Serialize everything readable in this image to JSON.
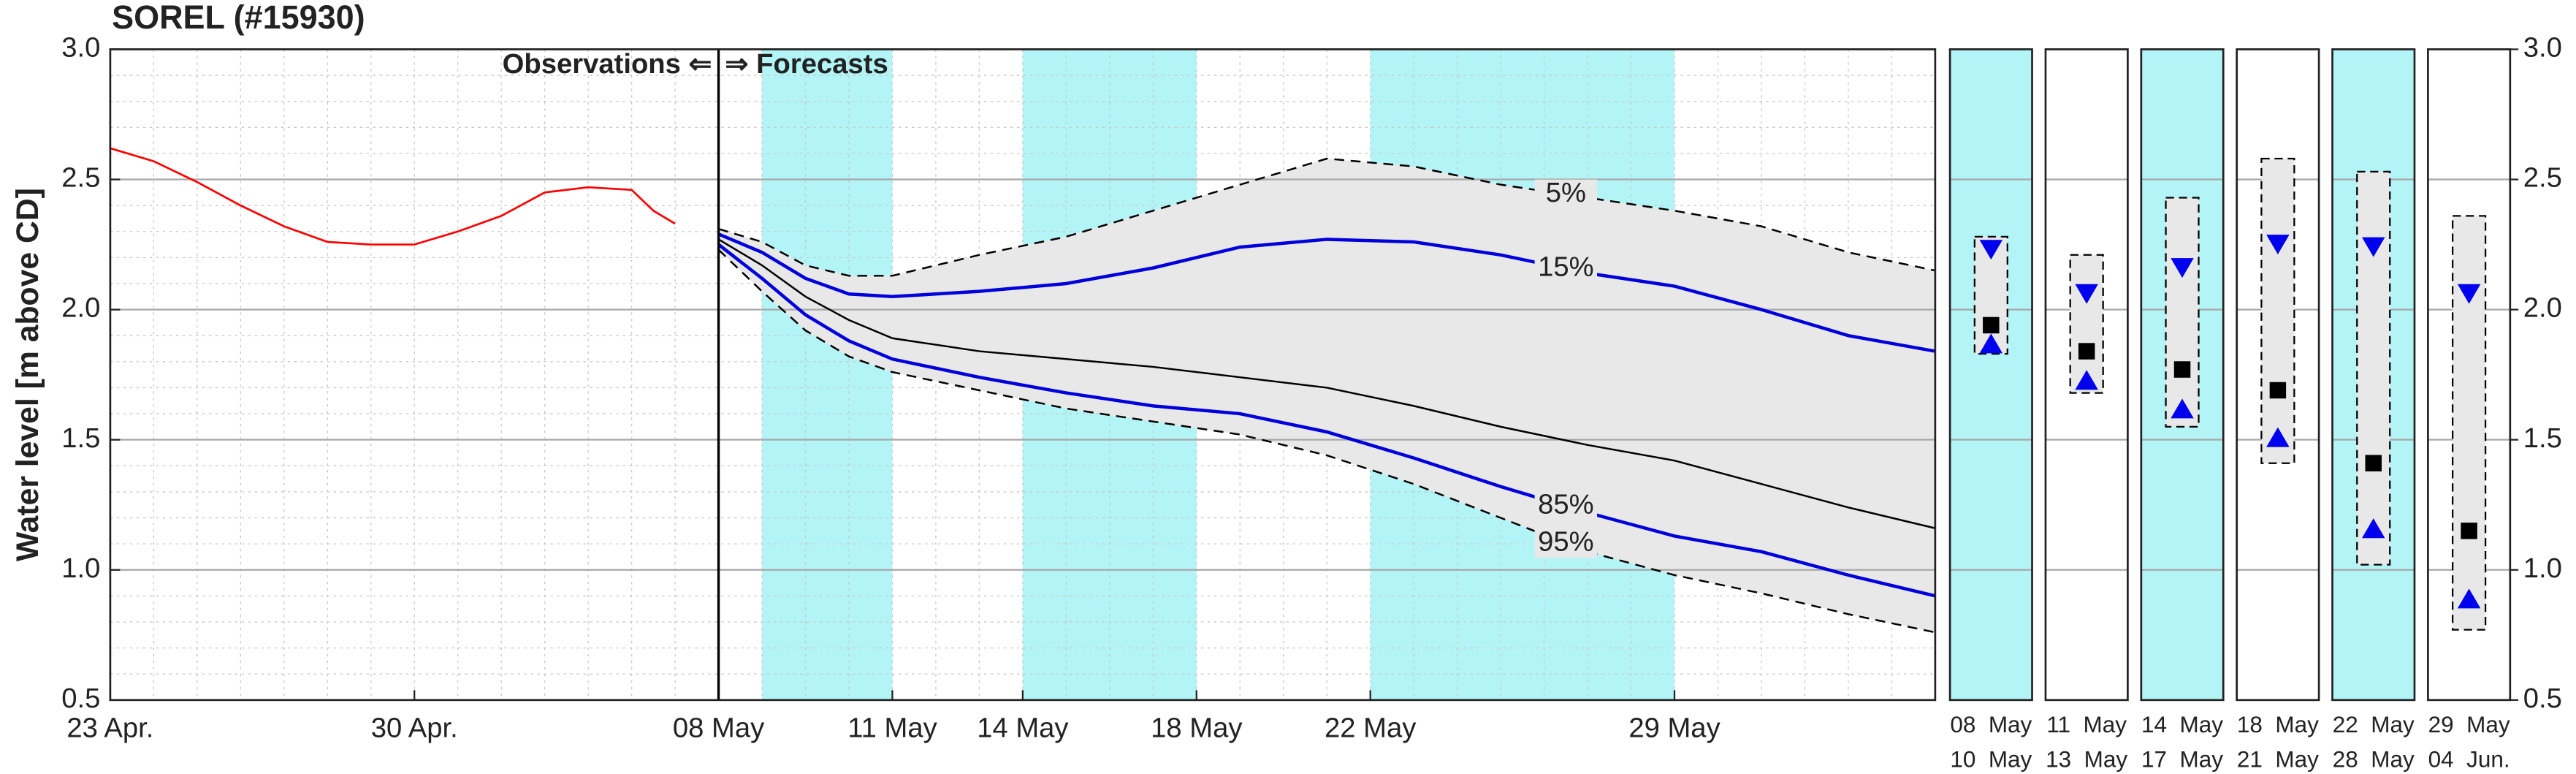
{
  "chart_data": {
    "type": "line",
    "title": "SOREL (#15930)",
    "y_label": "Water level [m above CD]",
    "annotations": [
      "Observations ⇐",
      "⇒ Forecasts"
    ],
    "forecast_start": 14,
    "shaded": [
      [
        15,
        18
      ],
      [
        21,
        25
      ],
      [
        29,
        36
      ]
    ],
    "xlim": [
      0,
      42
    ],
    "xticks": [
      {
        "value": 0,
        "label": "23 Apr."
      },
      {
        "value": 7,
        "label": "30 Apr."
      },
      {
        "value": 14,
        "label": "08 May"
      },
      {
        "value": 18,
        "label": "11 May"
      },
      {
        "value": 21,
        "label": "14 May"
      },
      {
        "value": 25,
        "label": "18 May"
      },
      {
        "value": 29,
        "label": "22 May"
      },
      {
        "value": 36,
        "label": "29 May"
      }
    ],
    "ylim": [
      0.5,
      3.0
    ],
    "yticks": [
      {
        "value": 0.5,
        "label": "0.5"
      },
      {
        "value": 1.0,
        "label": "1.0"
      },
      {
        "value": 1.5,
        "label": "1.5"
      },
      {
        "value": 2.0,
        "label": "2.0"
      },
      {
        "value": 2.5,
        "label": "2.5"
      },
      {
        "value": 3.0,
        "label": "3.0"
      }
    ],
    "y2lim": [
      0.5,
      3.0
    ],
    "y2ticks": [
      {
        "value": 0.5,
        "label": "0.5"
      },
      {
        "value": 1.0,
        "label": "1.0"
      },
      {
        "value": 1.5,
        "label": "1.5"
      },
      {
        "value": 2.0,
        "label": "2.0"
      },
      {
        "value": 2.5,
        "label": "2.5"
      },
      {
        "value": 3.0,
        "label": "3.0"
      }
    ],
    "grid": true,
    "observations": {
      "color": "#ff0000",
      "x": [
        0,
        1,
        2,
        3,
        4,
        5,
        6,
        7,
        8,
        9,
        10,
        11,
        12,
        12.5,
        13
      ],
      "values": [
        2.62,
        2.57,
        2.49,
        2.4,
        2.32,
        2.26,
        2.25,
        2.25,
        2.3,
        2.36,
        2.45,
        2.47,
        2.46,
        2.38,
        2.33
      ]
    },
    "median": {
      "color": "#000000",
      "x": [
        14,
        15,
        16,
        17,
        18,
        20,
        22,
        24,
        26,
        28,
        30,
        32,
        34,
        36,
        38,
        40,
        42
      ],
      "values": [
        2.27,
        2.17,
        2.05,
        1.96,
        1.89,
        1.84,
        1.81,
        1.78,
        1.74,
        1.7,
        1.63,
        1.55,
        1.48,
        1.42,
        1.33,
        1.24,
        1.16
      ]
    },
    "series": [
      {
        "name": "5%",
        "color": "#000000",
        "dashed": true,
        "x": [
          14,
          15,
          16,
          17,
          18,
          20,
          22,
          24,
          26,
          28,
          30,
          32,
          34,
          36,
          38,
          40,
          42
        ],
        "values": [
          2.31,
          2.26,
          2.17,
          2.13,
          2.13,
          2.21,
          2.28,
          2.38,
          2.48,
          2.58,
          2.55,
          2.48,
          2.43,
          2.38,
          2.32,
          2.22,
          2.15
        ]
      },
      {
        "name": "15%",
        "color": "#0000dd",
        "dashed": false,
        "x": [
          14,
          15,
          16,
          17,
          18,
          20,
          22,
          24,
          26,
          28,
          30,
          32,
          34,
          36,
          38,
          40,
          42
        ],
        "values": [
          2.29,
          2.22,
          2.12,
          2.06,
          2.05,
          2.07,
          2.1,
          2.16,
          2.24,
          2.27,
          2.26,
          2.21,
          2.14,
          2.09,
          2.0,
          1.9,
          1.84
        ]
      },
      {
        "name": "85%",
        "color": "#0000dd",
        "dashed": false,
        "x": [
          14,
          15,
          16,
          17,
          18,
          20,
          22,
          24,
          26,
          28,
          30,
          32,
          34,
          36,
          38,
          40,
          42
        ],
        "values": [
          2.25,
          2.12,
          1.98,
          1.88,
          1.81,
          1.74,
          1.68,
          1.63,
          1.6,
          1.53,
          1.43,
          1.32,
          1.22,
          1.13,
          1.07,
          0.98,
          0.9
        ]
      },
      {
        "name": "95%",
        "color": "#000000",
        "dashed": true,
        "x": [
          14,
          15,
          16,
          17,
          18,
          20,
          22,
          24,
          26,
          28,
          30,
          32,
          34,
          36,
          38,
          40,
          42
        ],
        "values": [
          2.23,
          2.07,
          1.92,
          1.82,
          1.76,
          1.69,
          1.62,
          1.57,
          1.52,
          1.44,
          1.33,
          1.2,
          1.07,
          0.98,
          0.91,
          0.83,
          0.76
        ]
      }
    ],
    "panels": [
      {
        "labels": [
          "08  May",
          "10  May"
        ],
        "shaded": true,
        "min": 1.83,
        "max": 2.28,
        "median": 1.94,
        "upper": 2.23,
        "lower": 1.87
      },
      {
        "labels": [
          "11  May",
          "13  May"
        ],
        "shaded": false,
        "min": 1.68,
        "max": 2.21,
        "median": 1.84,
        "upper": 2.06,
        "lower": 1.73
      },
      {
        "labels": [
          "14  May",
          "17  May"
        ],
        "shaded": true,
        "min": 1.55,
        "max": 2.43,
        "median": 1.77,
        "upper": 2.16,
        "lower": 1.62
      },
      {
        "labels": [
          "18  May",
          "21  May"
        ],
        "shaded": false,
        "min": 1.41,
        "max": 2.58,
        "median": 1.69,
        "upper": 2.25,
        "lower": 1.51
      },
      {
        "labels": [
          "22  May",
          "28  May"
        ],
        "shaded": true,
        "min": 1.02,
        "max": 2.53,
        "median": 1.41,
        "upper": 2.24,
        "lower": 1.16
      },
      {
        "labels": [
          "29  May",
          "04  Jun."
        ],
        "shaded": false,
        "min": 0.77,
        "max": 2.36,
        "median": 1.15,
        "upper": 2.06,
        "lower": 0.89
      }
    ],
    "shade_color": "#b3f5f7",
    "band_color": "#e8e8e8"
  }
}
